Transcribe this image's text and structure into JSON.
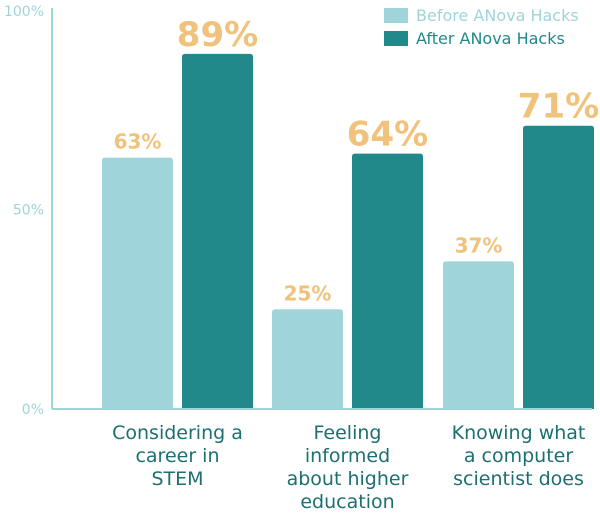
{
  "chart_data": {
    "type": "bar",
    "categories": [
      [
        "Considering a",
        "career in",
        "STEM"
      ],
      [
        "Feeling",
        "informed",
        "about higher",
        "education"
      ],
      [
        "Knowing what",
        "a computer",
        "scientist does"
      ]
    ],
    "series": [
      {
        "name": "Before ANova Hacks",
        "values": [
          63,
          25,
          37
        ],
        "labels": [
          "63%",
          "25%",
          "37%"
        ],
        "color": "#9fd5da"
      },
      {
        "name": "After ANova Hacks",
        "values": [
          89,
          64,
          71
        ],
        "labels": [
          "89%",
          "64%",
          "71%"
        ],
        "color": "#22898a"
      }
    ],
    "yticks": [
      {
        "value": 0,
        "label": "0%"
      },
      {
        "value": 50,
        "label": "50%"
      },
      {
        "value": 100,
        "label": "100%"
      }
    ],
    "ylim": [
      0,
      100
    ],
    "grid": false,
    "legend": "top-right",
    "colors": {
      "axis": "#9fd5da",
      "value_label": "#f0c27b",
      "category_text": "#1d6f72"
    }
  }
}
